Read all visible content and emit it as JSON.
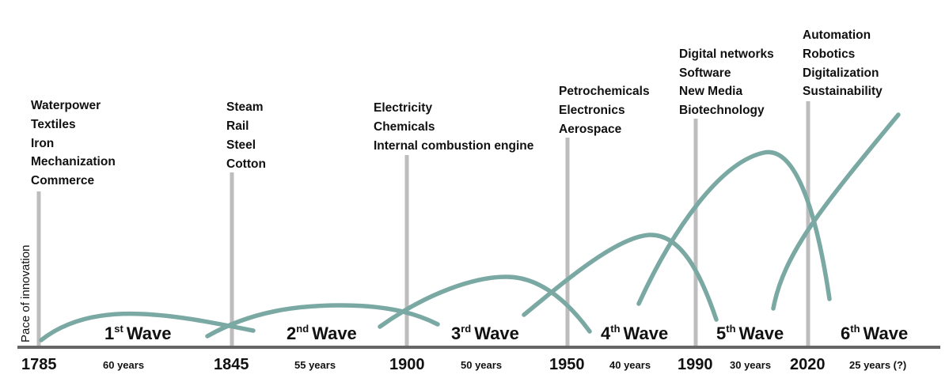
{
  "axis_label": "Pace of innovation",
  "colors": {
    "curve": "#7aa8a3",
    "marker": "#bdbdbd",
    "axis": "#666666",
    "text": "#111111"
  },
  "eras": [
    {
      "year": "1785",
      "duration": "60 years",
      "tech": [
        "Waterpower",
        "Textiles",
        "Iron",
        "Mechanization",
        "Commerce"
      ]
    },
    {
      "year": "1845",
      "duration": "55 years",
      "tech": [
        "Steam",
        "Rail",
        "Steel",
        "Cotton"
      ]
    },
    {
      "year": "1900",
      "duration": "50 years",
      "tech": [
        "Electricity",
        "Chemicals",
        "Internal combustion engine"
      ]
    },
    {
      "year": "1950",
      "duration": "40 years",
      "tech": [
        "Petrochemicals",
        "Electronics",
        "Aerospace"
      ]
    },
    {
      "year": "1990",
      "duration": "30 years",
      "tech": [
        "Digital networks",
        "Software",
        "New Media",
        "Biotechnology"
      ]
    },
    {
      "year": "2020",
      "duration": "25 years (?)",
      "tech": [
        "Automation",
        "Robotics",
        "Digitalization",
        "Sustainability"
      ]
    }
  ],
  "waves": [
    {
      "num": "1",
      "suffix": "st",
      "word": "Wave"
    },
    {
      "num": "2",
      "suffix": "nd",
      "word": "Wave"
    },
    {
      "num": "3",
      "suffix": "rd",
      "word": "Wave"
    },
    {
      "num": "4",
      "suffix": "th",
      "word": "Wave"
    },
    {
      "num": "5",
      "suffix": "th",
      "word": "Wave"
    },
    {
      "num": "6",
      "suffix": "th",
      "word": "Wave"
    }
  ]
}
